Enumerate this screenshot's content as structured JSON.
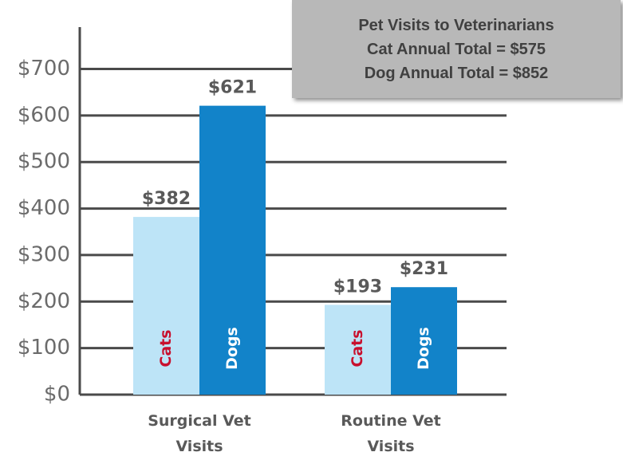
{
  "chart_data": {
    "type": "bar",
    "title": "Pet Visits to Veterinarians",
    "annotations": [
      "Cat Annual Total = $575",
      "Dog Annual Total = $852"
    ],
    "categories": [
      "Surgical Vet Visits",
      "Routine Vet Visits"
    ],
    "series": [
      {
        "name": "Cats",
        "color": "#bde4f7",
        "label_color": "#c8102e",
        "values": [
          382,
          193
        ],
        "value_labels": [
          "$382",
          "$193"
        ]
      },
      {
        "name": "Dogs",
        "color": "#1283c9",
        "label_color": "#ffffff",
        "values": [
          621,
          231
        ],
        "value_labels": [
          "$621",
          "$231"
        ]
      }
    ],
    "ylim": [
      0,
      790
    ],
    "yticks": [
      {
        "value": 0,
        "label": "$0"
      },
      {
        "value": 100,
        "label": "$100"
      },
      {
        "value": 200,
        "label": "$200"
      },
      {
        "value": 300,
        "label": "$300"
      },
      {
        "value": 400,
        "label": "$400"
      },
      {
        "value": 500,
        "label": "$500"
      },
      {
        "value": 600,
        "label": "$600"
      },
      {
        "value": 700,
        "label": "$700"
      }
    ],
    "grid": true
  }
}
